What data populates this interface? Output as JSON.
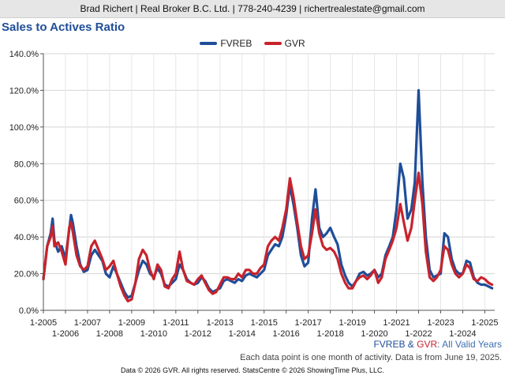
{
  "header": {
    "text": "Brad Richert | Real Broker B.C. Ltd. | 778-240-4239 | richertrealestate@gmail.com"
  },
  "chart_data": {
    "type": "line",
    "title": "Sales to Actives Ratio",
    "ylim": [
      0,
      140
    ],
    "yticks": [
      {
        "value": 0,
        "label": "0.0%"
      },
      {
        "value": 20,
        "label": "20.0%"
      },
      {
        "value": 40,
        "label": "40.0%"
      },
      {
        "value": 60,
        "label": "60.0%"
      },
      {
        "value": 80,
        "label": "80.0%"
      },
      {
        "value": 100,
        "label": "100.0%"
      },
      {
        "value": 120,
        "label": "120.0%"
      },
      {
        "value": 140,
        "label": "140.0%"
      }
    ],
    "xlim": [
      2005.0,
      2025.45
    ],
    "xticks": [
      {
        "value": 2005,
        "label": "1-2005"
      },
      {
        "value": 2006,
        "label": "1-2006"
      },
      {
        "value": 2007,
        "label": "1-2007"
      },
      {
        "value": 2008,
        "label": "1-2008"
      },
      {
        "value": 2009,
        "label": "1-2009"
      },
      {
        "value": 2010,
        "label": "1-2010"
      },
      {
        "value": 2011,
        "label": "1-2011"
      },
      {
        "value": 2012,
        "label": "1-2012"
      },
      {
        "value": 2013,
        "label": "1-2013"
      },
      {
        "value": 2014,
        "label": "1-2014"
      },
      {
        "value": 2015,
        "label": "1-2015"
      },
      {
        "value": 2016,
        "label": "1-2016"
      },
      {
        "value": 2017,
        "label": "1-2017"
      },
      {
        "value": 2018,
        "label": "1-2018"
      },
      {
        "value": 2019,
        "label": "1-2019"
      },
      {
        "value": 2020,
        "label": "1-2020"
      },
      {
        "value": 2021,
        "label": "1-2021"
      },
      {
        "value": 2022,
        "label": "1-2022"
      },
      {
        "value": 2023,
        "label": "1-2023"
      },
      {
        "value": 2024,
        "label": "1-2024"
      },
      {
        "value": 2025,
        "label": "1-2025"
      }
    ],
    "grid": true,
    "legend_position": "top-center",
    "series": [
      {
        "name": "FVREB",
        "color": "#1f4e99",
        "points": [
          [
            2005.0,
            17
          ],
          [
            2005.17,
            35
          ],
          [
            2005.33,
            42
          ],
          [
            2005.42,
            50
          ],
          [
            2005.5,
            38
          ],
          [
            2005.67,
            32
          ],
          [
            2005.83,
            35
          ],
          [
            2006.0,
            28
          ],
          [
            2006.17,
            44
          ],
          [
            2006.25,
            52
          ],
          [
            2006.33,
            48
          ],
          [
            2006.5,
            35
          ],
          [
            2006.67,
            25
          ],
          [
            2006.83,
            21
          ],
          [
            2007.0,
            22
          ],
          [
            2007.17,
            30
          ],
          [
            2007.33,
            33
          ],
          [
            2007.5,
            30
          ],
          [
            2007.67,
            27
          ],
          [
            2007.83,
            20
          ],
          [
            2008.0,
            18
          ],
          [
            2008.17,
            24
          ],
          [
            2008.33,
            20
          ],
          [
            2008.5,
            15
          ],
          [
            2008.67,
            10
          ],
          [
            2008.83,
            7
          ],
          [
            2009.0,
            8
          ],
          [
            2009.17,
            15
          ],
          [
            2009.33,
            22
          ],
          [
            2009.5,
            27
          ],
          [
            2009.67,
            25
          ],
          [
            2009.83,
            20
          ],
          [
            2010.0,
            18
          ],
          [
            2010.17,
            23
          ],
          [
            2010.33,
            20
          ],
          [
            2010.5,
            14
          ],
          [
            2010.67,
            13
          ],
          [
            2010.83,
            15
          ],
          [
            2011.0,
            17
          ],
          [
            2011.17,
            25
          ],
          [
            2011.33,
            22
          ],
          [
            2011.5,
            17
          ],
          [
            2011.67,
            15
          ],
          [
            2011.83,
            14
          ],
          [
            2012.0,
            15
          ],
          [
            2012.17,
            18
          ],
          [
            2012.33,
            16
          ],
          [
            2012.5,
            12
          ],
          [
            2012.67,
            10
          ],
          [
            2012.83,
            11
          ],
          [
            2013.0,
            12
          ],
          [
            2013.17,
            16
          ],
          [
            2013.33,
            17
          ],
          [
            2013.5,
            16
          ],
          [
            2013.67,
            15
          ],
          [
            2013.83,
            17
          ],
          [
            2014.0,
            16
          ],
          [
            2014.17,
            19
          ],
          [
            2014.33,
            20
          ],
          [
            2014.5,
            19
          ],
          [
            2014.67,
            18
          ],
          [
            2014.83,
            20
          ],
          [
            2015.0,
            22
          ],
          [
            2015.17,
            30
          ],
          [
            2015.33,
            33
          ],
          [
            2015.5,
            36
          ],
          [
            2015.67,
            35
          ],
          [
            2015.83,
            40
          ],
          [
            2016.0,
            52
          ],
          [
            2016.17,
            68
          ],
          [
            2016.33,
            58
          ],
          [
            2016.5,
            45
          ],
          [
            2016.67,
            30
          ],
          [
            2016.83,
            24
          ],
          [
            2017.0,
            26
          ],
          [
            2017.17,
            50
          ],
          [
            2017.33,
            66
          ],
          [
            2017.5,
            45
          ],
          [
            2017.67,
            40
          ],
          [
            2017.83,
            42
          ],
          [
            2018.0,
            45
          ],
          [
            2018.17,
            40
          ],
          [
            2018.33,
            36
          ],
          [
            2018.5,
            25
          ],
          [
            2018.67,
            19
          ],
          [
            2018.83,
            15
          ],
          [
            2019.0,
            13
          ],
          [
            2019.17,
            16
          ],
          [
            2019.33,
            20
          ],
          [
            2019.5,
            21
          ],
          [
            2019.67,
            19
          ],
          [
            2019.83,
            20
          ],
          [
            2020.0,
            22
          ],
          [
            2020.17,
            18
          ],
          [
            2020.33,
            20
          ],
          [
            2020.5,
            30
          ],
          [
            2020.67,
            35
          ],
          [
            2020.83,
            40
          ],
          [
            2021.0,
            55
          ],
          [
            2021.17,
            80
          ],
          [
            2021.33,
            72
          ],
          [
            2021.5,
            50
          ],
          [
            2021.67,
            55
          ],
          [
            2021.83,
            70
          ],
          [
            2022.0,
            120
          ],
          [
            2022.17,
            70
          ],
          [
            2022.33,
            40
          ],
          [
            2022.5,
            22
          ],
          [
            2022.67,
            18
          ],
          [
            2022.83,
            19
          ],
          [
            2023.0,
            20
          ],
          [
            2023.17,
            42
          ],
          [
            2023.33,
            40
          ],
          [
            2023.5,
            28
          ],
          [
            2023.67,
            22
          ],
          [
            2023.83,
            20
          ],
          [
            2024.0,
            20
          ],
          [
            2024.17,
            27
          ],
          [
            2024.33,
            26
          ],
          [
            2024.5,
            18
          ],
          [
            2024.67,
            15
          ],
          [
            2024.83,
            14
          ],
          [
            2025.0,
            14
          ],
          [
            2025.17,
            13
          ],
          [
            2025.33,
            12
          ]
        ]
      },
      {
        "name": "GVR",
        "color": "#c8232c",
        "points": [
          [
            2005.0,
            17
          ],
          [
            2005.17,
            35
          ],
          [
            2005.33,
            40
          ],
          [
            2005.42,
            46
          ],
          [
            2005.5,
            35
          ],
          [
            2005.67,
            37
          ],
          [
            2005.83,
            32
          ],
          [
            2006.0,
            25
          ],
          [
            2006.17,
            45
          ],
          [
            2006.25,
            48
          ],
          [
            2006.33,
            43
          ],
          [
            2006.5,
            30
          ],
          [
            2006.67,
            24
          ],
          [
            2006.83,
            22
          ],
          [
            2007.0,
            24
          ],
          [
            2007.17,
            35
          ],
          [
            2007.33,
            38
          ],
          [
            2007.5,
            33
          ],
          [
            2007.67,
            28
          ],
          [
            2007.83,
            22
          ],
          [
            2008.0,
            24
          ],
          [
            2008.17,
            27
          ],
          [
            2008.33,
            20
          ],
          [
            2008.5,
            13
          ],
          [
            2008.67,
            8
          ],
          [
            2008.83,
            5
          ],
          [
            2009.0,
            6
          ],
          [
            2009.17,
            15
          ],
          [
            2009.33,
            28
          ],
          [
            2009.5,
            33
          ],
          [
            2009.67,
            30
          ],
          [
            2009.83,
            22
          ],
          [
            2010.0,
            17
          ],
          [
            2010.17,
            25
          ],
          [
            2010.33,
            22
          ],
          [
            2010.5,
            13
          ],
          [
            2010.67,
            12
          ],
          [
            2010.83,
            17
          ],
          [
            2011.0,
            20
          ],
          [
            2011.17,
            32
          ],
          [
            2011.33,
            22
          ],
          [
            2011.5,
            16
          ],
          [
            2011.67,
            15
          ],
          [
            2011.83,
            14
          ],
          [
            2012.0,
            17
          ],
          [
            2012.17,
            19
          ],
          [
            2012.33,
            15
          ],
          [
            2012.5,
            11
          ],
          [
            2012.67,
            9
          ],
          [
            2012.83,
            10
          ],
          [
            2013.0,
            14
          ],
          [
            2013.17,
            18
          ],
          [
            2013.33,
            18
          ],
          [
            2013.5,
            17
          ],
          [
            2013.67,
            17
          ],
          [
            2013.83,
            20
          ],
          [
            2014.0,
            18
          ],
          [
            2014.17,
            22
          ],
          [
            2014.33,
            22
          ],
          [
            2014.5,
            20
          ],
          [
            2014.67,
            20
          ],
          [
            2014.83,
            23
          ],
          [
            2015.0,
            25
          ],
          [
            2015.17,
            35
          ],
          [
            2015.33,
            38
          ],
          [
            2015.5,
            40
          ],
          [
            2015.67,
            38
          ],
          [
            2015.83,
            45
          ],
          [
            2016.0,
            55
          ],
          [
            2016.17,
            72
          ],
          [
            2016.33,
            62
          ],
          [
            2016.5,
            48
          ],
          [
            2016.67,
            35
          ],
          [
            2016.83,
            28
          ],
          [
            2017.0,
            30
          ],
          [
            2017.17,
            42
          ],
          [
            2017.33,
            55
          ],
          [
            2017.5,
            42
          ],
          [
            2017.67,
            35
          ],
          [
            2017.83,
            33
          ],
          [
            2018.0,
            34
          ],
          [
            2018.17,
            32
          ],
          [
            2018.33,
            28
          ],
          [
            2018.5,
            20
          ],
          [
            2018.67,
            15
          ],
          [
            2018.83,
            12
          ],
          [
            2019.0,
            12
          ],
          [
            2019.17,
            16
          ],
          [
            2019.33,
            18
          ],
          [
            2019.5,
            19
          ],
          [
            2019.67,
            17
          ],
          [
            2019.83,
            19
          ],
          [
            2020.0,
            22
          ],
          [
            2020.17,
            15
          ],
          [
            2020.33,
            18
          ],
          [
            2020.5,
            28
          ],
          [
            2020.67,
            33
          ],
          [
            2020.83,
            38
          ],
          [
            2021.0,
            45
          ],
          [
            2021.17,
            58
          ],
          [
            2021.33,
            48
          ],
          [
            2021.5,
            38
          ],
          [
            2021.67,
            45
          ],
          [
            2021.83,
            60
          ],
          [
            2022.0,
            75
          ],
          [
            2022.17,
            58
          ],
          [
            2022.33,
            32
          ],
          [
            2022.5,
            18
          ],
          [
            2022.67,
            16
          ],
          [
            2022.83,
            18
          ],
          [
            2023.0,
            22
          ],
          [
            2023.17,
            35
          ],
          [
            2023.33,
            33
          ],
          [
            2023.5,
            25
          ],
          [
            2023.67,
            20
          ],
          [
            2023.83,
            18
          ],
          [
            2024.0,
            20
          ],
          [
            2024.17,
            25
          ],
          [
            2024.33,
            23
          ],
          [
            2024.5,
            17
          ],
          [
            2024.67,
            16
          ],
          [
            2024.83,
            18
          ],
          [
            2025.0,
            17
          ],
          [
            2025.17,
            15
          ],
          [
            2025.33,
            14
          ]
        ]
      }
    ]
  },
  "notes": {
    "series_note": {
      "part1": "FVREB",
      "sep": " & ",
      "part2": "GVR",
      "part3": ": All Valid Years"
    },
    "data_note": "Each data point is one month of activity. Data is from June 19, 2025.",
    "footer": "Data © 2026 GVR. All rights reserved. StatsCentre © 2026 ShowingTime Plus, LLC."
  }
}
